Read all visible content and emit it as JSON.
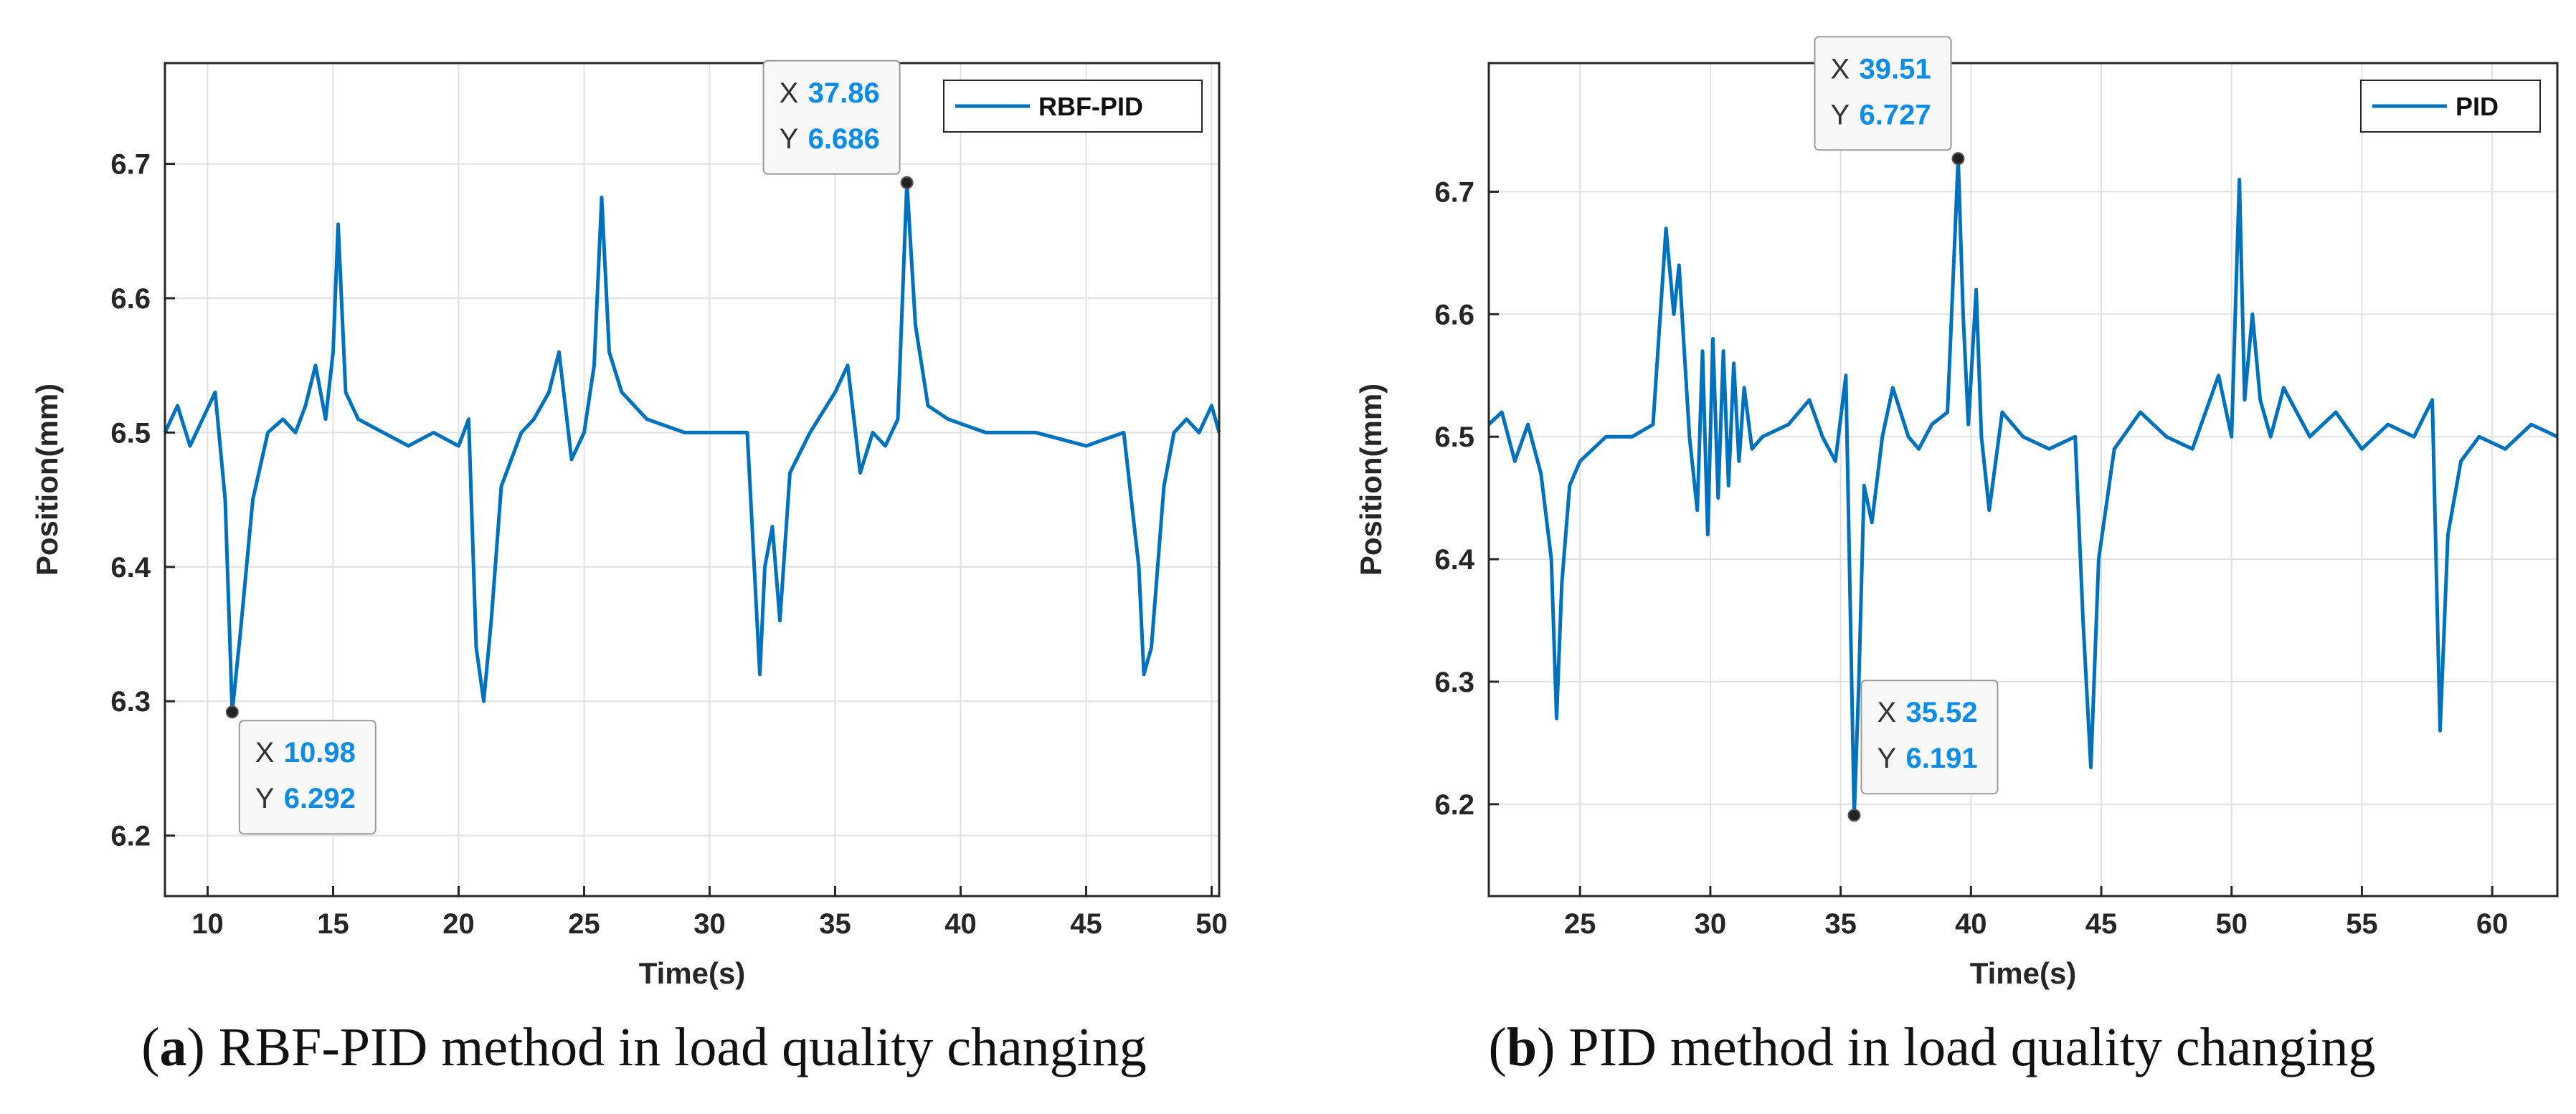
{
  "chart_data": [
    {
      "type": "line",
      "title": "",
      "xlabel": "Time(s)",
      "ylabel": "Position(mm)",
      "xlim": [
        8.3,
        50.3
      ],
      "ylim": [
        6.155,
        6.775
      ],
      "xticks": [
        10,
        15,
        20,
        25,
        30,
        35,
        40,
        45,
        50
      ],
      "yticks": [
        6.2,
        6.3,
        6.4,
        6.5,
        6.6,
        6.7
      ],
      "grid": true,
      "legend": {
        "label": "RBF-PID",
        "placement": "top-right"
      },
      "line_color": "#0072BD",
      "series": [
        {
          "name": "RBF-PID",
          "x": [
            8.3,
            8.8,
            9.3,
            9.8,
            10.3,
            10.7,
            10.98,
            11.3,
            11.8,
            12.4,
            13.0,
            13.5,
            13.9,
            14.3,
            14.7,
            15.0,
            15.2,
            15.5,
            16.0,
            17.0,
            18.0,
            19.0,
            20.0,
            20.4,
            20.7,
            21.0,
            21.3,
            21.7,
            22.5,
            23.0,
            23.6,
            24.0,
            24.5,
            25.0,
            25.4,
            25.7,
            26.0,
            26.5,
            27.5,
            29.0,
            30.5,
            31.5,
            32.0,
            32.2,
            32.5,
            32.8,
            33.2,
            34.0,
            35.0,
            35.5,
            36.0,
            36.5,
            37.0,
            37.5,
            37.86,
            38.2,
            38.7,
            39.5,
            41.0,
            43.0,
            45.0,
            46.5,
            47.1,
            47.3,
            47.6,
            48.1,
            48.5,
            49.0,
            49.5,
            50.0,
            50.3
          ],
          "y": [
            6.5,
            6.52,
            6.49,
            6.51,
            6.53,
            6.45,
            6.292,
            6.35,
            6.45,
            6.5,
            6.51,
            6.5,
            6.52,
            6.55,
            6.51,
            6.56,
            6.655,
            6.53,
            6.51,
            6.5,
            6.49,
            6.5,
            6.49,
            6.51,
            6.34,
            6.3,
            6.36,
            6.46,
            6.5,
            6.51,
            6.53,
            6.56,
            6.48,
            6.5,
            6.55,
            6.675,
            6.56,
            6.53,
            6.51,
            6.5,
            6.5,
            6.5,
            6.32,
            6.4,
            6.43,
            6.36,
            6.47,
            6.5,
            6.53,
            6.55,
            6.47,
            6.5,
            6.49,
            6.51,
            6.686,
            6.58,
            6.52,
            6.51,
            6.5,
            6.5,
            6.49,
            6.5,
            6.4,
            6.32,
            6.34,
            6.46,
            6.5,
            6.51,
            6.5,
            6.52,
            6.5
          ]
        }
      ],
      "datatips": [
        {
          "x_label": "X",
          "x_value": "10.98",
          "y_label": "Y",
          "y_value": "6.292",
          "x": 10.98,
          "y": 6.292,
          "anchor": "below-right"
        },
        {
          "x_label": "X",
          "x_value": "37.86",
          "y_label": "Y",
          "y_value": "6.686",
          "x": 37.86,
          "y": 6.686,
          "anchor": "above-left"
        }
      ],
      "caption": {
        "label": "a",
        "text": "RBF-PID method in load quality changing"
      }
    },
    {
      "type": "line",
      "title": "",
      "xlabel": "Time(s)",
      "ylabel": "Position(mm)",
      "xlim": [
        21.5,
        62.5
      ],
      "ylim": [
        6.125,
        6.805
      ],
      "xticks": [
        25,
        30,
        35,
        40,
        45,
        50,
        55,
        60
      ],
      "yticks": [
        6.2,
        6.3,
        6.4,
        6.5,
        6.6,
        6.7
      ],
      "grid": true,
      "legend": {
        "label": "PID",
        "placement": "top-right"
      },
      "line_color": "#0072BD",
      "series": [
        {
          "name": "PID",
          "x": [
            21.5,
            22.0,
            22.5,
            23.0,
            23.5,
            23.9,
            24.1,
            24.3,
            24.6,
            25.0,
            26.0,
            27.0,
            27.8,
            28.3,
            28.6,
            28.8,
            29.2,
            29.5,
            29.7,
            29.9,
            30.1,
            30.3,
            30.5,
            30.7,
            30.9,
            31.1,
            31.3,
            31.6,
            32.0,
            33.0,
            33.8,
            34.3,
            34.8,
            35.2,
            35.52,
            35.7,
            35.9,
            36.2,
            36.6,
            37.0,
            37.6,
            38.0,
            38.5,
            39.1,
            39.51,
            39.7,
            39.9,
            40.2,
            40.4,
            40.7,
            41.2,
            42.0,
            43.0,
            44.0,
            44.3,
            44.6,
            44.9,
            45.5,
            46.5,
            47.5,
            48.5,
            49.5,
            50.0,
            50.3,
            50.5,
            50.8,
            51.1,
            51.5,
            52.0,
            53.0,
            54.0,
            55.0,
            56.0,
            57.0,
            57.7,
            58.0,
            58.3,
            58.8,
            59.5,
            60.5,
            61.5,
            62.5
          ],
          "y": [
            6.51,
            6.52,
            6.48,
            6.51,
            6.47,
            6.4,
            6.27,
            6.38,
            6.46,
            6.48,
            6.5,
            6.5,
            6.51,
            6.67,
            6.6,
            6.64,
            6.5,
            6.44,
            6.57,
            6.42,
            6.58,
            6.45,
            6.57,
            6.46,
            6.56,
            6.48,
            6.54,
            6.49,
            6.5,
            6.51,
            6.53,
            6.5,
            6.48,
            6.55,
            6.191,
            6.3,
            6.46,
            6.43,
            6.5,
            6.54,
            6.5,
            6.49,
            6.51,
            6.52,
            6.727,
            6.6,
            6.51,
            6.62,
            6.5,
            6.44,
            6.52,
            6.5,
            6.49,
            6.5,
            6.35,
            6.23,
            6.4,
            6.49,
            6.52,
            6.5,
            6.49,
            6.55,
            6.5,
            6.71,
            6.53,
            6.6,
            6.53,
            6.5,
            6.54,
            6.5,
            6.52,
            6.49,
            6.51,
            6.5,
            6.53,
            6.26,
            6.42,
            6.48,
            6.5,
            6.49,
            6.51,
            6.5
          ]
        }
      ],
      "datatips": [
        {
          "x_label": "X",
          "x_value": "39.51",
          "y_label": "Y",
          "y_value": "6.727",
          "x": 39.51,
          "y": 6.727,
          "anchor": "above-left"
        },
        {
          "x_label": "X",
          "x_value": "35.52",
          "y_label": "Y",
          "y_value": "6.191",
          "x": 35.52,
          "y": 6.191,
          "anchor": "above-right"
        }
      ],
      "caption": {
        "label": "b",
        "text": "PID method in load quality changing"
      }
    }
  ]
}
